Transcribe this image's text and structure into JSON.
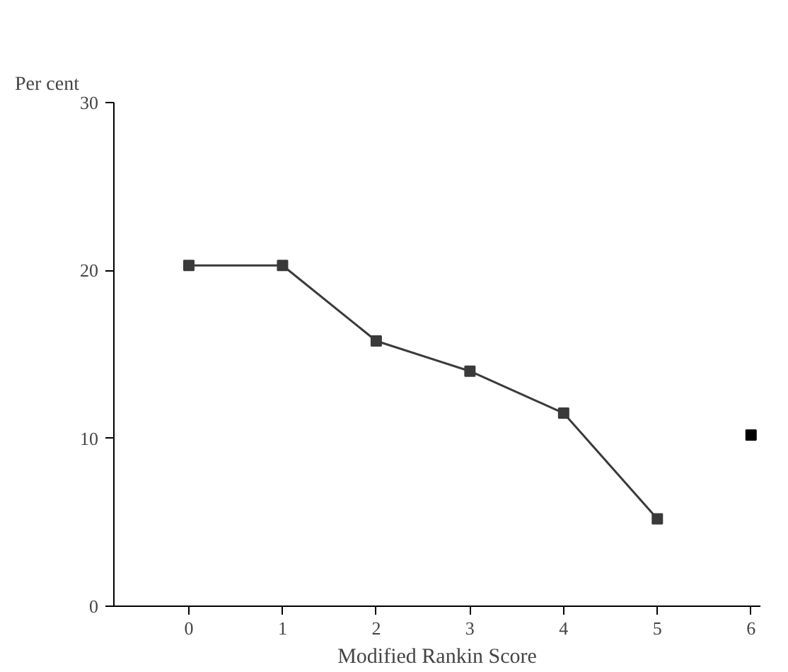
{
  "chart_data": {
    "type": "line",
    "xlabel": "Modified Rankin Score",
    "ylabel": "Per cent",
    "series": [
      {
        "x": [
          0,
          1,
          2,
          3,
          4,
          5
        ],
        "values": [
          20.3,
          20.3,
          15.8,
          14.0,
          11.5,
          5.2
        ],
        "color": "#3a3a3a"
      },
      {
        "type": "scatter",
        "x": [
          6
        ],
        "values": [
          10.2
        ],
        "color": "#000000"
      }
    ],
    "xlim": [
      -0.8,
      6.1
    ],
    "ylim": [
      0,
      30
    ],
    "xticks": [
      0,
      1,
      2,
      3,
      4,
      5,
      6
    ],
    "yticks": [
      0,
      10,
      20,
      30
    ],
    "marker": "square",
    "line_style": "solid",
    "grid": false
  }
}
